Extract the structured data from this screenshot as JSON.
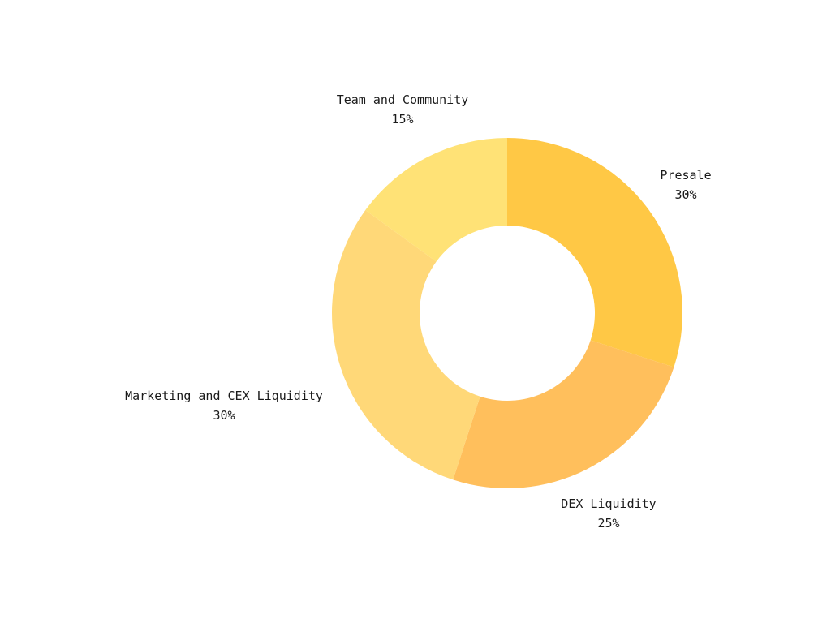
{
  "chart_data": {
    "type": "pie",
    "donut": true,
    "title": "",
    "labels": [
      "Presale",
      "DEX Liquidity",
      "Marketing and CEX Liquidity",
      "Team and Community"
    ],
    "values": [
      30,
      25,
      30,
      15
    ],
    "value_labels": [
      "30%",
      "25%",
      "30%",
      "15%"
    ],
    "colors": [
      "#FFC845",
      "#FFBF5C",
      "#FFD878",
      "#FFE276"
    ],
    "legend": "none",
    "label_placement": "outside"
  }
}
